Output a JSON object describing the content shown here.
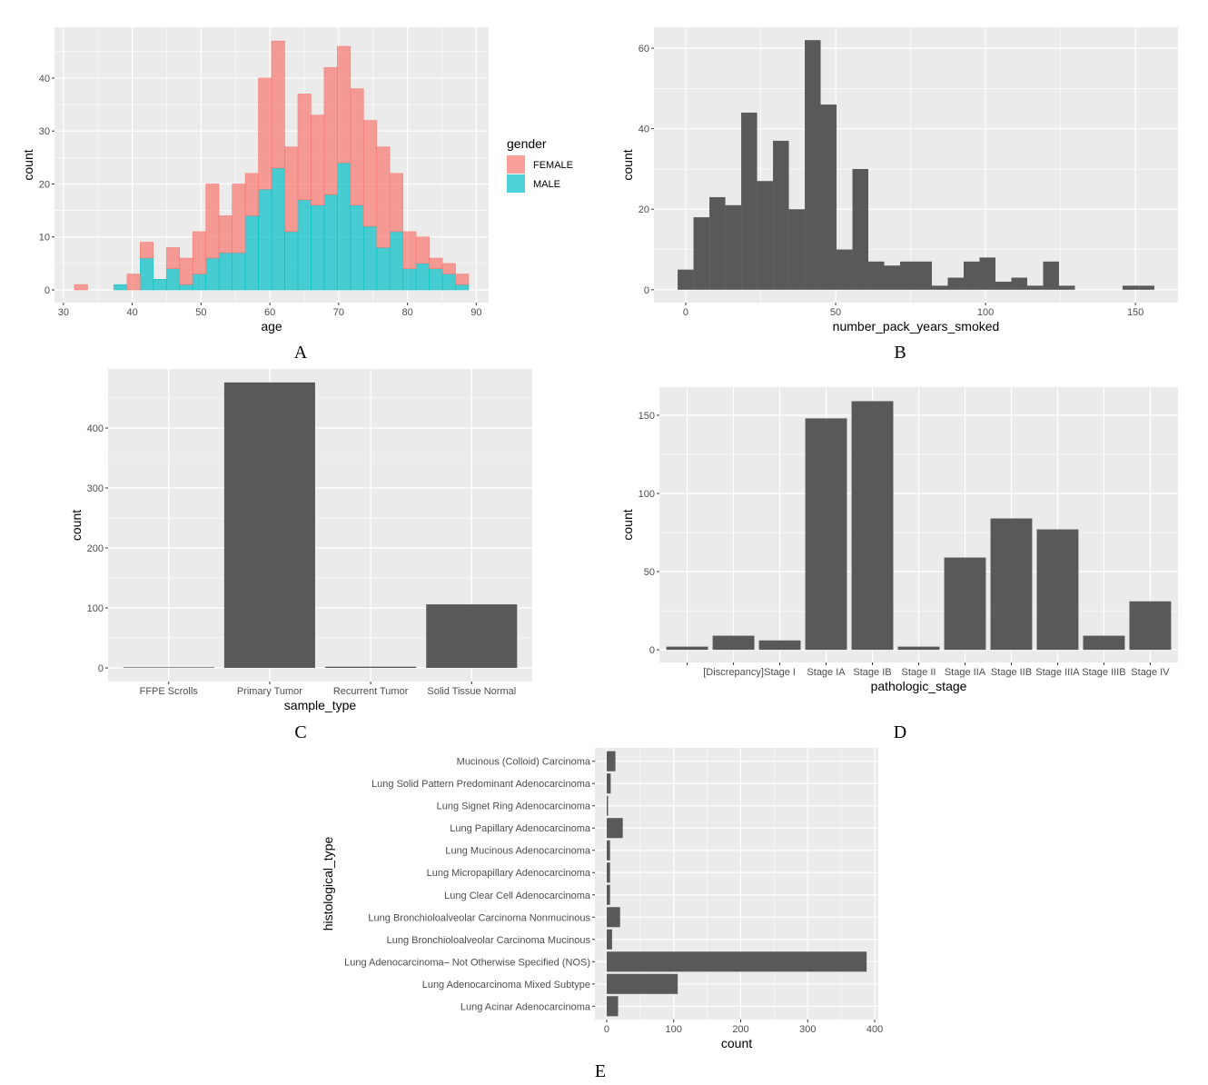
{
  "chart_data": [
    {
      "panel_label": "A",
      "type": "bar",
      "subtype": "stacked-histogram",
      "xlabel": "age",
      "ylabel": "count",
      "xlim": [
        28.7,
        91.8
      ],
      "ylim": [
        -2.4,
        49.6
      ],
      "xticks": [
        30,
        40,
        50,
        60,
        70,
        80,
        90
      ],
      "yticks": [
        0,
        10,
        20,
        30,
        40
      ],
      "bin_start": 31.6,
      "bin_width": 1.91,
      "series": [
        {
          "name": "MALE",
          "color": "#00BFC4",
          "values": [
            0,
            0,
            0,
            1,
            0,
            6,
            2,
            4,
            1,
            3,
            6,
            7,
            7,
            14,
            19,
            23,
            11,
            17,
            16,
            18,
            24,
            16,
            12,
            8,
            11,
            4,
            5,
            4,
            3,
            1
          ]
        },
        {
          "name": "FEMALE",
          "color": "#F8766D",
          "values": [
            1,
            0,
            0,
            0,
            3,
            3,
            0,
            4,
            5,
            8,
            14,
            7,
            13,
            8,
            21,
            24,
            16,
            20,
            17,
            24,
            22,
            22,
            20,
            19,
            11,
            7,
            5,
            2,
            2,
            2
          ]
        }
      ],
      "legend": {
        "title": "gender",
        "placement": "right",
        "entries": [
          {
            "label": "FEMALE",
            "color": "#F8766D"
          },
          {
            "label": "MALE",
            "color": "#00BFC4"
          }
        ]
      }
    },
    {
      "panel_label": "B",
      "type": "bar",
      "subtype": "histogram",
      "xlabel": "number_pack_years_smoked",
      "ylabel": "count",
      "xlim": [
        -10.6,
        164.2
      ],
      "ylim": [
        -3.2,
        65.2
      ],
      "xticks": [
        0,
        50,
        100,
        150
      ],
      "yticks": [
        0,
        20,
        40,
        60
      ],
      "bin_start": -2.7,
      "bin_width": 5.3,
      "series": [
        {
          "name": "count",
          "color": "#595959",
          "values": [
            5,
            18,
            23,
            21,
            44,
            27,
            37,
            20,
            62,
            46,
            10,
            30,
            7,
            6,
            7,
            7,
            1,
            3,
            7,
            8,
            2,
            3,
            1,
            7,
            1,
            0,
            0,
            0,
            1,
            1
          ]
        }
      ]
    },
    {
      "panel_label": "C",
      "type": "bar",
      "xlabel": "sample_type",
      "ylabel": "count",
      "ylim": [
        -22.7,
        498.5
      ],
      "yticks": [
        0,
        100,
        200,
        300,
        400
      ],
      "categories": [
        "FFPE Scrolls",
        "Primary Tumor",
        "Recurrent Tumor",
        "Solid Tissue Normal"
      ],
      "values": [
        1,
        476,
        2,
        106
      ],
      "color": "#595959"
    },
    {
      "panel_label": "D",
      "type": "bar",
      "xlabel": "pathologic_stage",
      "ylabel": "count",
      "ylim": [
        -8.1,
        168
      ],
      "yticks": [
        0,
        50,
        100,
        150
      ],
      "categories": [
        "",
        "[Discrepancy]",
        "Stage I",
        "Stage IA",
        "Stage IB",
        "Stage II",
        "Stage IIA",
        "Stage IIB",
        "Stage IIIA",
        "Stage IIIB",
        "Stage IV"
      ],
      "values": [
        2,
        9,
        6,
        148,
        159,
        2,
        59,
        84,
        77,
        9,
        31
      ],
      "color": "#595959"
    },
    {
      "panel_label": "E",
      "type": "bar",
      "orientation": "horizontal",
      "xlabel": "count",
      "ylabel": "histological_type",
      "xlim": [
        -17.6,
        405.4
      ],
      "xticks": [
        0,
        100,
        200,
        300,
        400
      ],
      "categories": [
        "Mucinous (Colloid) Carcinoma",
        "Lung Solid Pattern Predominant Adenocarcinoma",
        "Lung Signet Ring Adenocarcinoma",
        "Lung Papillary Adenocarcinoma",
        "Lung Mucinous Adenocarcinoma",
        "Lung Micropapillary Adenocarcinoma",
        "Lung Clear Cell Adenocarcinoma",
        "Lung Bronchioloalveolar Carcinoma Nonmucinous",
        "Lung Bronchioloalveolar Carcinoma Mucinous",
        "Lung Adenocarcinoma– Not Otherwise Specified (NOS)",
        "Lung Adenocarcinoma Mixed Subtype",
        "Lung Acinar Adenocarcinoma"
      ],
      "values": [
        13,
        6,
        2,
        24,
        5,
        5,
        5,
        20,
        8,
        388,
        106,
        17
      ],
      "color": "#595959"
    }
  ]
}
